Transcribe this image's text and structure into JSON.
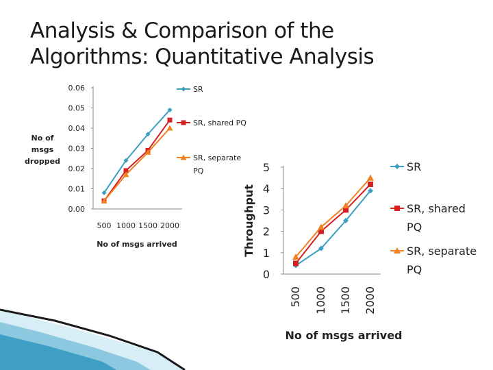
{
  "title": {
    "line1": "Analysis & Comparison of the",
    "line2": "Algorithms: Quantitative Analysis"
  },
  "colors": {
    "SR": "#3a9fc0",
    "SR, shared PQ": "#d42020",
    "SR, separate PQ": "#f08020"
  },
  "chart_data": [
    {
      "type": "line",
      "title": "",
      "categories": [
        "500",
        "1000",
        "1500",
        "2000"
      ],
      "x": [
        500,
        1000,
        1500,
        2000
      ],
      "xlabel": "No of msgs arrived",
      "ylabel": "No of msgs dropped",
      "ylabel_lines": [
        "No of",
        "msgs",
        "dropped"
      ],
      "ylim": [
        0,
        0.06
      ],
      "yticks": [
        "0.00",
        "0.01",
        "0.02",
        "0.03",
        "0.04",
        "0.05",
        "0.06"
      ],
      "legend": {
        "position": "right"
      },
      "series": [
        {
          "name": "SR",
          "legend_lines": [
            "SR"
          ],
          "values": [
            0.008,
            0.024,
            0.037,
            0.049
          ]
        },
        {
          "name": "SR, shared PQ",
          "legend_lines": [
            "SR, shared PQ"
          ],
          "values": [
            0.004,
            0.019,
            0.029,
            0.044
          ]
        },
        {
          "name": "SR, separate PQ",
          "legend_lines": [
            "SR, separate",
            "PQ"
          ],
          "values": [
            0.004,
            0.017,
            0.028,
            0.04
          ]
        }
      ]
    },
    {
      "type": "line",
      "title": "",
      "categories": [
        "500",
        "1000",
        "1500",
        "2000"
      ],
      "x": [
        500,
        1000,
        1500,
        2000
      ],
      "xlabel": "No of msgs arrived",
      "ylabel": "Throughput",
      "ylim": [
        0,
        5
      ],
      "yticks": [
        "0",
        "1",
        "2",
        "3",
        "4",
        "5"
      ],
      "legend": {
        "position": "right"
      },
      "series": [
        {
          "name": "SR",
          "legend_lines": [
            "SR"
          ],
          "values": [
            0.4,
            1.2,
            2.5,
            3.9
          ]
        },
        {
          "name": "SR, shared PQ",
          "legend_lines": [
            "SR, shared",
            "PQ"
          ],
          "values": [
            0.5,
            2.0,
            3.0,
            4.2
          ]
        },
        {
          "name": "SR, separate PQ",
          "legend_lines": [
            "SR, separate",
            "PQ"
          ],
          "values": [
            0.8,
            2.2,
            3.2,
            4.5
          ]
        }
      ]
    }
  ]
}
